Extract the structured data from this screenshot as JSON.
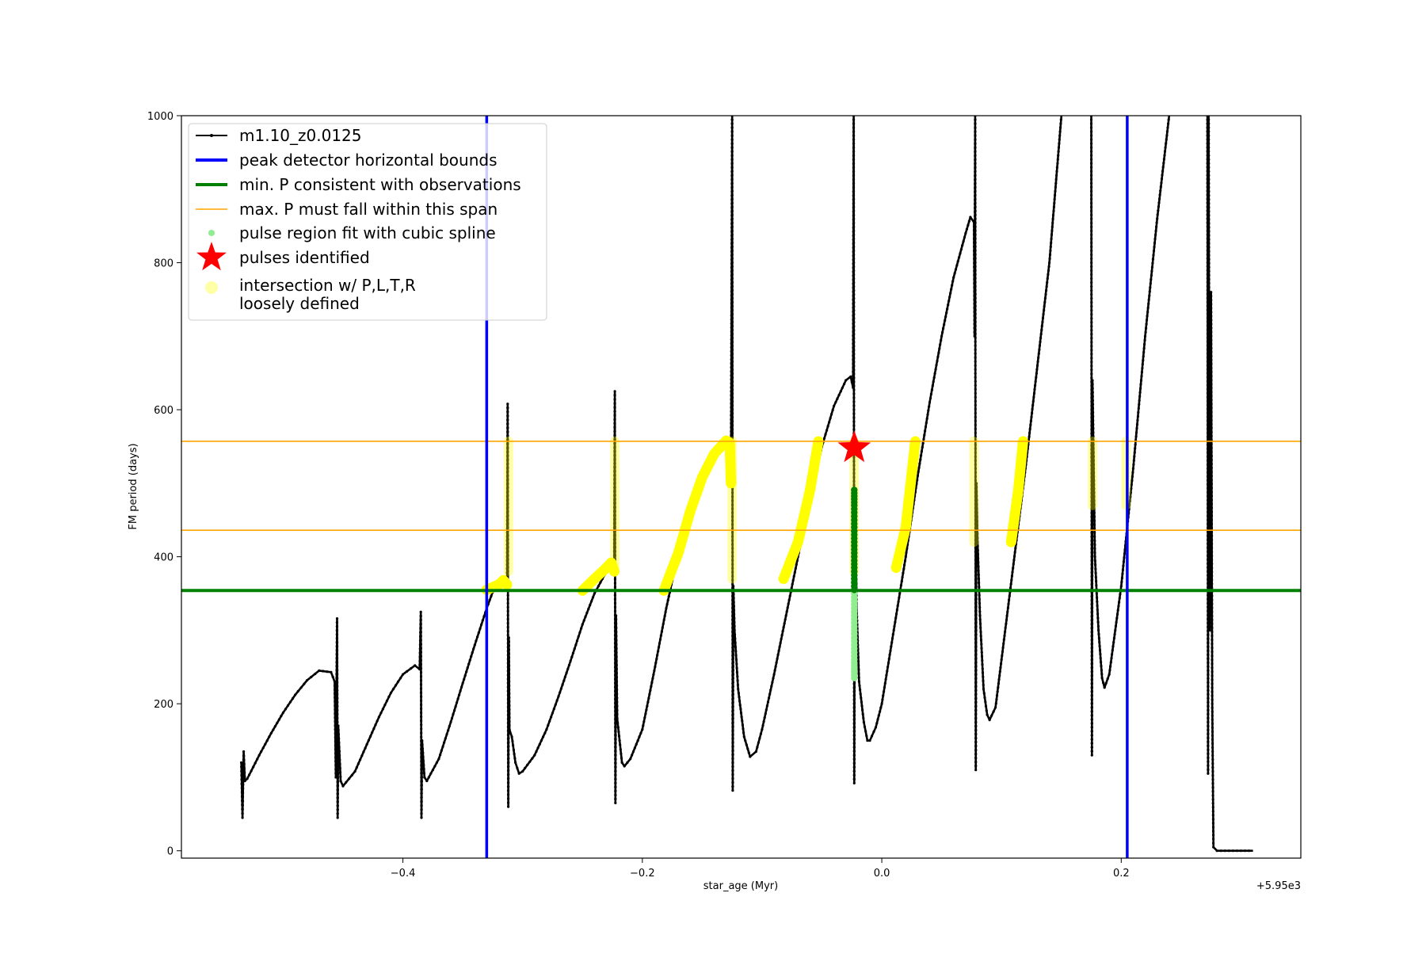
{
  "chart_data": {
    "type": "line",
    "title": "",
    "xlabel": "star_age (Myr)",
    "ylabel": "FM period (days)",
    "x_offset_label": "+5.95e3",
    "x_offset": 5950,
    "xlim": [
      -0.585,
      0.35
    ],
    "ylim": [
      -10,
      1000
    ],
    "x_ticks": [
      -0.4,
      -0.2,
      0.0,
      0.2
    ],
    "x_tick_labels": [
      "−0.4",
      "−0.2",
      "0.0",
      "0.2"
    ],
    "y_ticks": [
      0,
      200,
      400,
      600,
      800,
      1000
    ],
    "y_tick_labels": [
      "0",
      "200",
      "400",
      "600",
      "800",
      "1000"
    ],
    "grid": false,
    "legend_position": "top-left",
    "colors": {
      "model_line": "#000000",
      "peak_bounds": "#0000ff",
      "min_period": "#008000",
      "max_period_span": "#ffa500",
      "spline_region": "#90ee90",
      "pulse_marker": "#ff0000",
      "loose_intersection": "#ffff00"
    },
    "legend": [
      {
        "key": "model",
        "label": "m1.10_z0.0125"
      },
      {
        "key": "bounds",
        "label": "peak detector horizontal bounds"
      },
      {
        "key": "minp",
        "label": "min. P consistent with observations"
      },
      {
        "key": "maxp",
        "label": "max. P must fall within this span"
      },
      {
        "key": "spline",
        "label": "pulse region fit with cubic spline"
      },
      {
        "key": "pulse",
        "label": "pulses identified"
      },
      {
        "key": "loose",
        "label": "intersection w/ P,L,T,R",
        "label2": "loosely defined"
      }
    ],
    "vertical_bounds_x": [
      -0.33,
      0.205
    ],
    "min_period_y": 354,
    "max_period_span_y": [
      436,
      557
    ],
    "pulses_identified": [
      {
        "x": -0.023,
        "y": 548
      }
    ],
    "series": [
      {
        "name": "m1.10_z0.0125",
        "segments": [
          [
            [
              -0.535,
              120
            ],
            [
              -0.534,
              45
            ],
            [
              -0.533,
              135
            ],
            [
              -0.532,
              95
            ],
            [
              -0.53,
              98
            ],
            [
              -0.52,
              130
            ],
            [
              -0.51,
              160
            ],
            [
              -0.5,
              188
            ],
            [
              -0.49,
              212
            ],
            [
              -0.48,
              232
            ],
            [
              -0.47,
              245
            ],
            [
              -0.46,
              243
            ],
            [
              -0.457,
              230
            ]
          ],
          [
            [
              -0.457,
              230
            ],
            [
              -0.456,
              100
            ],
            [
              -0.455,
              316
            ],
            [
              -0.4545,
              45
            ],
            [
              -0.454,
              170
            ],
            [
              -0.452,
              95
            ],
            [
              -0.45,
              88
            ],
            [
              -0.44,
              108
            ],
            [
              -0.43,
              145
            ],
            [
              -0.42,
              182
            ],
            [
              -0.41,
              215
            ],
            [
              -0.4,
              240
            ],
            [
              -0.39,
              252
            ],
            [
              -0.386,
              247
            ]
          ],
          [
            [
              -0.386,
              247
            ],
            [
              -0.385,
              325
            ],
            [
              -0.3845,
              45
            ],
            [
              -0.384,
              150
            ],
            [
              -0.382,
              100
            ],
            [
              -0.38,
              95
            ],
            [
              -0.37,
              125
            ],
            [
              -0.36,
              175
            ],
            [
              -0.35,
              228
            ],
            [
              -0.34,
              280
            ],
            [
              -0.33,
              330
            ],
            [
              -0.325,
              352
            ],
            [
              -0.32,
              362
            ],
            [
              -0.316,
              368
            ],
            [
              -0.313,
              362
            ]
          ],
          [
            [
              -0.313,
              362
            ],
            [
              -0.3125,
              608
            ],
            [
              -0.312,
              60
            ],
            [
              -0.3115,
              290
            ],
            [
              -0.311,
              165
            ],
            [
              -0.309,
              155
            ],
            [
              -0.306,
              120
            ],
            [
              -0.303,
              105
            ],
            [
              -0.3,
              108
            ],
            [
              -0.29,
              130
            ],
            [
              -0.28,
              165
            ],
            [
              -0.27,
              210
            ],
            [
              -0.26,
              258
            ],
            [
              -0.25,
              308
            ],
            [
              -0.24,
              350
            ],
            [
              -0.23,
              380
            ],
            [
              -0.226,
              392
            ],
            [
              -0.2235,
              380
            ]
          ],
          [
            [
              -0.2235,
              380
            ],
            [
              -0.223,
              625
            ],
            [
              -0.2225,
              65
            ],
            [
              -0.222,
              320
            ],
            [
              -0.221,
              180
            ],
            [
              -0.219,
              150
            ],
            [
              -0.217,
              120
            ],
            [
              -0.215,
              115
            ],
            [
              -0.21,
              125
            ],
            [
              -0.2,
              165
            ],
            [
              -0.19,
              245
            ],
            [
              -0.18,
              330
            ],
            [
              -0.17,
              405
            ],
            [
              -0.16,
              462
            ],
            [
              -0.15,
              508
            ],
            [
              -0.14,
              540
            ],
            [
              -0.13,
              558
            ],
            [
              -0.127,
              555
            ],
            [
              -0.126,
              500
            ]
          ],
          [
            [
              -0.126,
              500
            ],
            [
              -0.125,
              1000
            ],
            [
              -0.1245,
              82
            ],
            [
              -0.124,
              360
            ],
            [
              -0.123,
              300
            ],
            [
              -0.12,
              220
            ],
            [
              -0.115,
              155
            ],
            [
              -0.11,
              128
            ],
            [
              -0.105,
              135
            ],
            [
              -0.1,
              165
            ],
            [
              -0.09,
              240
            ],
            [
              -0.08,
              320
            ],
            [
              -0.07,
              400
            ],
            [
              -0.06,
              480
            ],
            [
              -0.05,
              550
            ],
            [
              -0.04,
              605
            ],
            [
              -0.03,
              640
            ],
            [
              -0.026,
              645
            ],
            [
              -0.024,
              630
            ]
          ],
          [
            [
              -0.024,
              630
            ],
            [
              -0.0235,
              1000
            ],
            [
              -0.023,
              92
            ],
            [
              -0.0225,
              490
            ],
            [
              -0.021,
              330
            ],
            [
              -0.019,
              230
            ],
            [
              -0.015,
              175
            ],
            [
              -0.012,
              150
            ],
            [
              -0.01,
              150
            ],
            [
              -0.005,
              168
            ],
            [
              0.0,
              200
            ],
            [
              0.01,
              300
            ],
            [
              0.02,
              400
            ],
            [
              0.03,
              510
            ],
            [
              0.04,
              610
            ],
            [
              0.05,
              700
            ],
            [
              0.06,
              780
            ],
            [
              0.07,
              840
            ],
            [
              0.074,
              862
            ],
            [
              0.077,
              855
            ],
            [
              0.0775,
              700
            ]
          ],
          [
            [
              0.0775,
              700
            ],
            [
              0.078,
              1000
            ],
            [
              0.0785,
              110
            ],
            [
              0.079,
              500
            ],
            [
              0.08,
              420
            ],
            [
              0.082,
              320
            ],
            [
              0.085,
              220
            ],
            [
              0.088,
              185
            ],
            [
              0.09,
              178
            ],
            [
              0.095,
              195
            ],
            [
              0.1,
              260
            ],
            [
              0.11,
              390
            ],
            [
              0.12,
              520
            ],
            [
              0.13,
              660
            ],
            [
              0.14,
              800
            ],
            [
              0.15,
              1000
            ]
          ],
          [
            [
              0.175,
              1000
            ],
            [
              0.1755,
              130
            ],
            [
              0.176,
              640
            ],
            [
              0.178,
              400
            ],
            [
              0.181,
              300
            ],
            [
              0.184,
              235
            ],
            [
              0.186,
              222
            ],
            [
              0.19,
              240
            ],
            [
              0.2,
              360
            ],
            [
              0.21,
              520
            ],
            [
              0.22,
              700
            ],
            [
              0.23,
              860
            ],
            [
              0.24,
              1000
            ]
          ],
          [
            [
              0.272,
              1000
            ],
            [
              0.2725,
              105
            ],
            [
              0.273,
              1000
            ],
            [
              0.274,
              300
            ],
            [
              0.275,
              760
            ],
            [
              0.276,
              200
            ],
            [
              0.277,
              5
            ],
            [
              0.28,
              0
            ],
            [
              0.3,
              0
            ],
            [
              0.31,
              0
            ]
          ]
        ]
      },
      {
        "name": "pulse region fit with cubic spline",
        "points": [
          [
            -0.023,
            235
          ],
          [
            -0.023,
            260
          ],
          [
            -0.023,
            290
          ],
          [
            -0.023,
            320
          ],
          [
            -0.023,
            350
          ],
          [
            -0.023,
            380
          ],
          [
            -0.023,
            410
          ],
          [
            -0.023,
            440
          ],
          [
            -0.023,
            470
          ],
          [
            -0.023,
            495
          ]
        ]
      },
      {
        "name": "intersection w/ P,L,T,R loosely defined",
        "segments": [
          [
            [
              -0.33,
              355
            ],
            [
              -0.32,
              362
            ],
            [
              -0.316,
              368
            ],
            [
              -0.313,
              362
            ]
          ],
          [
            [
              -0.312,
              380
            ],
            [
              -0.312,
              557
            ]
          ],
          [
            [
              -0.25,
              354
            ],
            [
              -0.24,
              370
            ],
            [
              -0.23,
              385
            ],
            [
              -0.226,
              392
            ],
            [
              -0.2235,
              380
            ]
          ],
          [
            [
              -0.223,
              380
            ],
            [
              -0.223,
              557
            ]
          ],
          [
            [
              -0.182,
              354
            ],
            [
              -0.17,
              405
            ],
            [
              -0.16,
              462
            ],
            [
              -0.15,
              508
            ],
            [
              -0.14,
              540
            ],
            [
              -0.13,
              558
            ],
            [
              -0.127,
              555
            ],
            [
              -0.126,
              500
            ]
          ],
          [
            [
              -0.125,
              370
            ],
            [
              -0.125,
              557
            ]
          ],
          [
            [
              -0.082,
              370
            ],
            [
              -0.07,
              420
            ],
            [
              -0.06,
              490
            ],
            [
              -0.053,
              557
            ]
          ],
          [
            [
              -0.023,
              380
            ],
            [
              -0.023,
              557
            ]
          ],
          [
            [
              0.012,
              385
            ],
            [
              0.02,
              440
            ],
            [
              0.028,
              557
            ]
          ],
          [
            [
              0.077,
              420
            ],
            [
              0.077,
              557
            ]
          ],
          [
            [
              0.108,
              420
            ],
            [
              0.114,
              490
            ],
            [
              0.118,
              557
            ]
          ],
          [
            [
              0.176,
              470
            ],
            [
              0.176,
              557
            ]
          ],
          [
            [
              0.204,
              470
            ],
            [
              0.204,
              557
            ]
          ]
        ]
      }
    ]
  }
}
